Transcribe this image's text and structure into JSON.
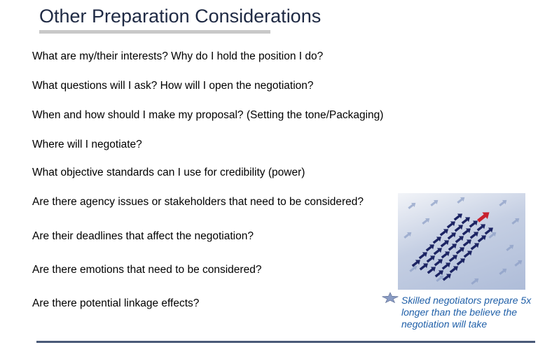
{
  "slide": {
    "title": "Other Preparation Considerations",
    "questions": [
      "What are my/their interests?  Why do I hold the position I do?",
      "What questions will I ask?  How will I open the negotiation?",
      "When and how should I make my proposal? (Setting the tone/Packaging)",
      "Where will I negotiate?",
      "What objective standards can I use for credibility (power)",
      "Are there agency issues or stakeholders that need to be considered?",
      "Are their deadlines that affect the negotiation?",
      "Are there emotions that need to be considered?",
      "Are there potential linkage effects?"
    ],
    "caption": "Skilled negotiators prepare 5x longer than the believe the negotiation will take"
  },
  "colors": {
    "title": "#1f2a44",
    "caption": "#1f5fa8",
    "arrow_navy": "#1c2463",
    "arrow_red": "#c8202e",
    "arrow_light": "#8a9cc4"
  },
  "picture_icon": "arrows-flock-image",
  "caption_icon": "star-icon"
}
